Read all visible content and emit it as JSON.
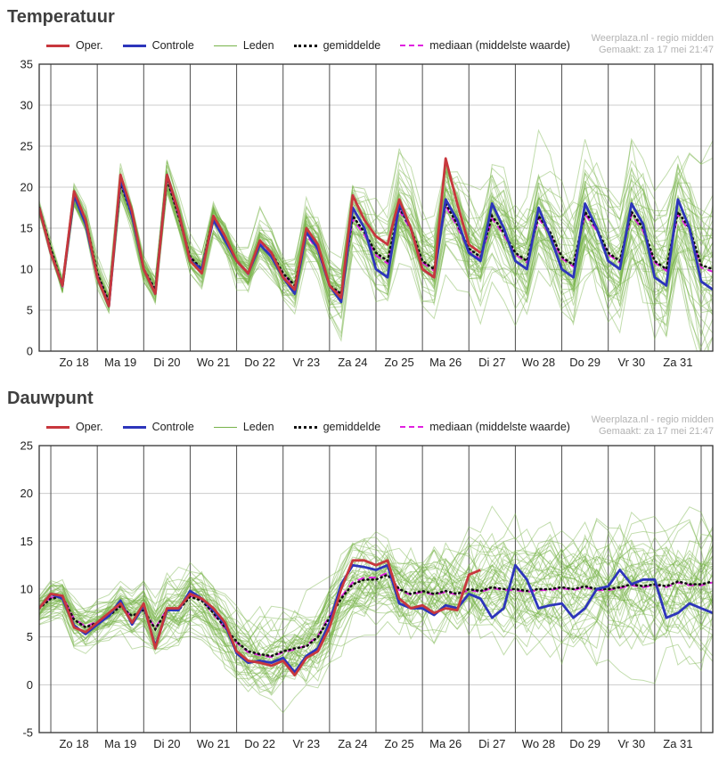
{
  "page": {
    "watermark_line1": "Weerplaza.nl - regio midden",
    "watermark_line2": "Gemaakt: za 17 mei 21:47"
  },
  "colors": {
    "oper": "#c8373d",
    "controle": "#2d35bb",
    "leden": "#77b34a",
    "gemiddelde": "#111111",
    "mediaan": "#e020e0",
    "grid": "#cccccc",
    "dayline": "#4d4d4d",
    "border": "#333333"
  },
  "legend": {
    "items": [
      {
        "label": "Oper."
      },
      {
        "label": "Controle"
      },
      {
        "label": "Leden"
      },
      {
        "label": "gemiddelde"
      },
      {
        "label": "mediaan (middelste waarde)"
      }
    ]
  },
  "chart_data": [
    {
      "type": "line",
      "title": "Temperatuur",
      "ylim": [
        0,
        35
      ],
      "yticks": [
        0,
        5,
        10,
        15,
        20,
        25,
        30,
        35
      ],
      "x_day_labels": [
        "Zo 18",
        "Ma 19",
        "Di 20",
        "Wo 21",
        "Do 22",
        "Vr 23",
        "Za 24",
        "Zo 25",
        "Ma 26",
        "Di 27",
        "Wo 28",
        "Do 29",
        "Vr 30",
        "Za 31"
      ],
      "points_per_day": 4,
      "n_points": 59,
      "series": {
        "oper": [
          17.5,
          12.0,
          8.0,
          19.5,
          16.0,
          9.0,
          5.5,
          21.5,
          17.0,
          10.0,
          7.0,
          21.5,
          17.0,
          11.0,
          9.5,
          16.5,
          14.0,
          11.0,
          9.5,
          13.5,
          12.0,
          9.0,
          7.5,
          15.0,
          13.0,
          8.0,
          6.5,
          19.0,
          16.0,
          14.0,
          13.0,
          18.5,
          15.0,
          10.0,
          9.0,
          23.5,
          18.0,
          13.0,
          12.0
        ],
        "controle": [
          17.5,
          12.0,
          8.0,
          19.0,
          15.5,
          9.0,
          5.5,
          21.0,
          16.5,
          10.0,
          7.0,
          21.5,
          17.0,
          11.0,
          10.0,
          16.0,
          13.5,
          11.0,
          9.5,
          13.0,
          11.5,
          9.0,
          7.0,
          14.5,
          12.5,
          8.0,
          6.0,
          17.5,
          15.0,
          10.0,
          9.0,
          18.0,
          15.0,
          10.0,
          9.0,
          18.5,
          16.0,
          12.0,
          11.0,
          18.0,
          15.0,
          11.0,
          10.0,
          17.5,
          14.0,
          10.0,
          9.0,
          18.0,
          15.0,
          11.0,
          10.0,
          18.0,
          15.5,
          9.0,
          8.0,
          18.5,
          15.0,
          8.5,
          7.5
        ],
        "gemiddelde": [
          17.5,
          12.5,
          8.0,
          19.0,
          16.0,
          9.5,
          6.0,
          20.5,
          16.5,
          10.0,
          7.5,
          21.0,
          16.5,
          11.5,
          10.0,
          16.5,
          14.0,
          11.0,
          9.5,
          13.5,
          12.0,
          9.5,
          8.0,
          14.5,
          12.5,
          8.0,
          7.0,
          16.5,
          14.5,
          12.0,
          11.0,
          17.5,
          15.0,
          11.0,
          10.0,
          18.0,
          15.5,
          12.5,
          11.5,
          16.5,
          14.5,
          12.0,
          11.0,
          16.5,
          14.5,
          11.5,
          10.5,
          17.0,
          15.0,
          12.0,
          11.0,
          17.0,
          15.0,
          11.0,
          10.0,
          17.0,
          15.0,
          10.5,
          10.0
        ],
        "mediaan": [
          17.4,
          12.3,
          7.8,
          19.1,
          15.9,
          9.4,
          5.8,
          20.6,
          16.4,
          9.9,
          7.4,
          21.1,
          16.4,
          11.4,
          9.9,
          16.3,
          13.8,
          10.9,
          9.4,
          13.3,
          11.9,
          9.4,
          7.9,
          14.2,
          12.3,
          7.9,
          6.9,
          16.1,
          14.2,
          11.7,
          10.7,
          17.2,
          14.8,
          10.8,
          9.8,
          17.7,
          15.2,
          12.2,
          11.2,
          16.2,
          14.2,
          11.8,
          10.8,
          16.2,
          14.2,
          11.3,
          10.3,
          16.7,
          14.7,
          11.8,
          10.8,
          16.7,
          14.7,
          10.8,
          9.8,
          16.7,
          14.7,
          10.2,
          9.7
        ]
      },
      "members": {
        "count": 50,
        "spread": [
          0.5,
          0.6,
          0.6,
          0.8,
          0.8,
          0.8,
          0.8,
          1.0,
          1.0,
          1.0,
          1.0,
          1.2,
          1.2,
          1.2,
          1.2,
          1.5,
          1.5,
          1.5,
          1.5,
          1.8,
          1.8,
          2.0,
          2.0,
          2.2,
          2.2,
          2.5,
          2.5,
          2.8,
          2.8,
          3.0,
          3.0,
          3.0,
          3.0,
          3.0,
          3.0,
          3.2,
          3.2,
          3.2,
          3.2,
          3.5,
          3.5,
          3.5,
          3.5,
          3.8,
          3.8,
          3.8,
          3.8,
          4.0,
          4.0,
          4.0,
          4.0,
          4.2,
          4.2,
          4.2,
          4.5,
          4.8,
          5.0,
          5.0,
          5.5
        ]
      }
    },
    {
      "type": "line",
      "title": "Dauwpunt",
      "ylim": [
        -5,
        25
      ],
      "yticks": [
        -5,
        0,
        5,
        10,
        15,
        20,
        25
      ],
      "x_day_labels": [
        "Zo 18",
        "Ma 19",
        "Di 20",
        "Wo 21",
        "Do 22",
        "Vr 23",
        "Za 24",
        "Zo 25",
        "Ma 26",
        "Di 27",
        "Wo 28",
        "Do 29",
        "Vr 30",
        "Za 31"
      ],
      "points_per_day": 4,
      "n_points": 59,
      "series": {
        "oper": [
          8.0,
          9.5,
          9.3,
          6.0,
          5.5,
          6.5,
          7.5,
          8.5,
          6.5,
          8.5,
          3.8,
          8.0,
          8.0,
          9.5,
          9.0,
          8.0,
          6.5,
          3.5,
          2.5,
          2.3,
          2.0,
          2.5,
          1.0,
          2.8,
          3.5,
          6.0,
          10.0,
          13.0,
          13.0,
          12.5,
          13.0,
          9.0,
          8.0,
          8.3,
          7.5,
          8.0,
          7.8,
          11.5,
          12.0
        ],
        "controle": [
          8.0,
          9.5,
          9.0,
          6.2,
          5.3,
          6.3,
          7.2,
          8.8,
          6.3,
          8.3,
          4.0,
          7.8,
          7.8,
          9.8,
          9.0,
          7.8,
          6.3,
          3.3,
          2.3,
          2.5,
          2.3,
          2.8,
          1.3,
          3.0,
          3.8,
          6.5,
          10.5,
          12.5,
          12.3,
          12.0,
          12.5,
          8.5,
          8.0,
          8.0,
          7.3,
          8.3,
          8.0,
          9.5,
          9.0,
          7.0,
          8.0,
          12.5,
          11.0,
          8.0,
          8.3,
          8.5,
          7.0,
          8.0,
          10.0,
          10.3,
          12.0,
          10.5,
          11.0,
          11.0,
          7.0,
          7.5,
          8.5,
          8.0,
          7.5
        ],
        "gemiddelde": [
          8.0,
          9.0,
          9.2,
          6.8,
          6.0,
          6.5,
          7.2,
          8.2,
          7.2,
          7.8,
          5.8,
          7.8,
          7.8,
          9.2,
          8.8,
          7.5,
          6.0,
          4.5,
          3.5,
          3.2,
          3.0,
          3.5,
          3.8,
          4.0,
          5.0,
          7.0,
          9.0,
          10.5,
          11.0,
          11.0,
          11.5,
          10.0,
          9.5,
          9.8,
          9.5,
          9.8,
          9.5,
          10.0,
          9.8,
          10.2,
          10.0,
          10.0,
          9.8,
          10.0,
          10.0,
          10.2,
          10.0,
          10.3,
          10.0,
          10.0,
          10.2,
          10.5,
          10.3,
          10.5,
          10.3,
          10.8,
          10.5,
          10.5,
          10.8
        ],
        "mediaan": [
          8.0,
          9.1,
          9.3,
          6.9,
          6.1,
          6.6,
          7.3,
          8.3,
          7.1,
          7.9,
          5.9,
          7.9,
          7.9,
          9.3,
          8.9,
          7.4,
          5.9,
          4.4,
          3.4,
          3.1,
          2.9,
          3.4,
          3.7,
          4.1,
          5.1,
          7.2,
          9.2,
          10.7,
          11.2,
          11.2,
          11.7,
          9.9,
          9.4,
          9.7,
          9.4,
          9.7,
          9.4,
          9.9,
          9.7,
          10.1,
          9.9,
          9.9,
          9.7,
          9.9,
          9.9,
          10.1,
          9.9,
          10.2,
          9.9,
          9.9,
          10.1,
          10.4,
          10.2,
          10.4,
          10.2,
          10.7,
          10.4,
          10.4,
          10.7
        ]
      },
      "members": {
        "count": 50,
        "spread": [
          1.0,
          1.2,
          1.2,
          1.4,
          1.4,
          1.4,
          1.4,
          1.6,
          1.6,
          1.6,
          1.6,
          1.8,
          1.8,
          1.8,
          1.8,
          2.0,
          2.0,
          2.0,
          2.0,
          2.2,
          2.2,
          2.2,
          2.2,
          2.5,
          2.5,
          2.5,
          2.5,
          2.8,
          2.8,
          2.8,
          2.8,
          3.0,
          3.0,
          3.0,
          3.0,
          3.0,
          3.0,
          3.0,
          3.0,
          3.2,
          3.2,
          3.2,
          3.2,
          3.2,
          3.2,
          3.2,
          3.2,
          3.5,
          3.5,
          3.5,
          3.5,
          3.5,
          3.5,
          3.5,
          3.5,
          3.8,
          3.8,
          3.8,
          3.8
        ]
      }
    }
  ]
}
